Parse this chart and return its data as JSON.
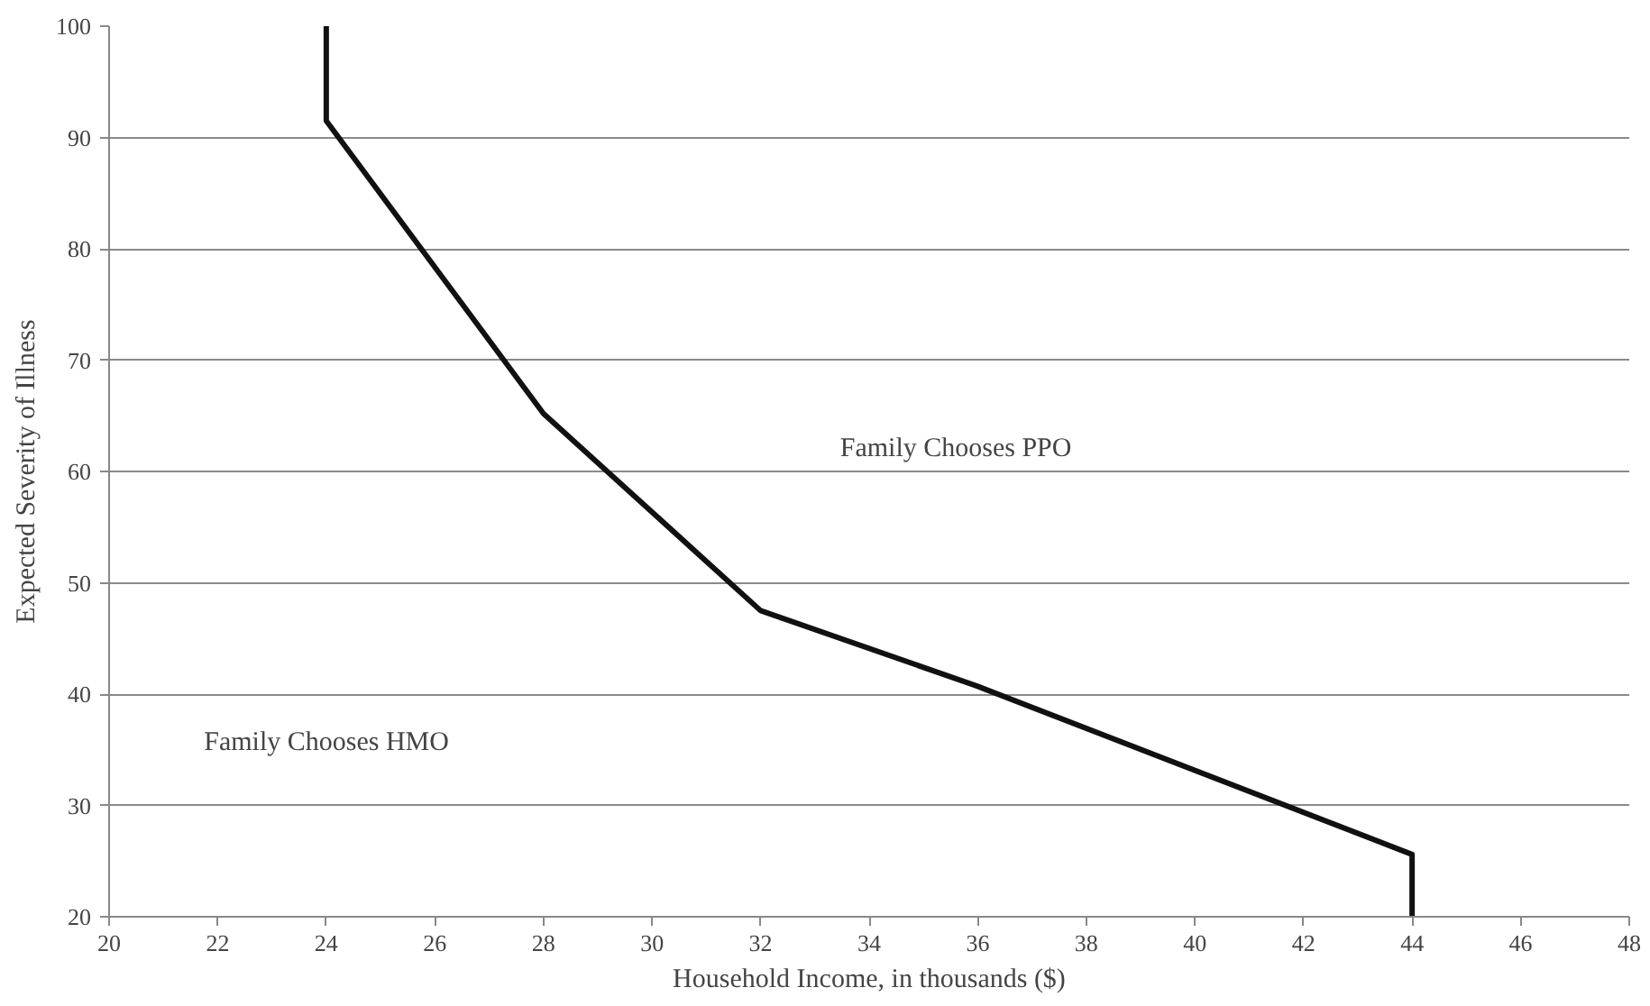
{
  "chart_data": {
    "type": "line",
    "xlabel": "Household Income, in thousands ($)",
    "ylabel": "Expected Severity of Illness",
    "x": [
      24,
      24,
      28,
      32,
      36,
      44,
      44
    ],
    "series": [
      {
        "color": "#111111",
        "values": [
          100,
          91.5,
          65.2,
          47.5,
          40.7,
          25.6,
          20
        ]
      }
    ],
    "xlim": [
      20,
      48
    ],
    "xticks": [
      20,
      22,
      24,
      26,
      28,
      30,
      32,
      34,
      36,
      38,
      40,
      42,
      44,
      46,
      48
    ],
    "ylim": [
      20,
      100
    ],
    "yticks": [
      20,
      30,
      40,
      50,
      60,
      70,
      80,
      90,
      100
    ],
    "grid": "y",
    "marker": "none",
    "line_style": "solid",
    "annotations": [
      "Family Chooses PPO",
      "Family Chooses HMO"
    ]
  }
}
